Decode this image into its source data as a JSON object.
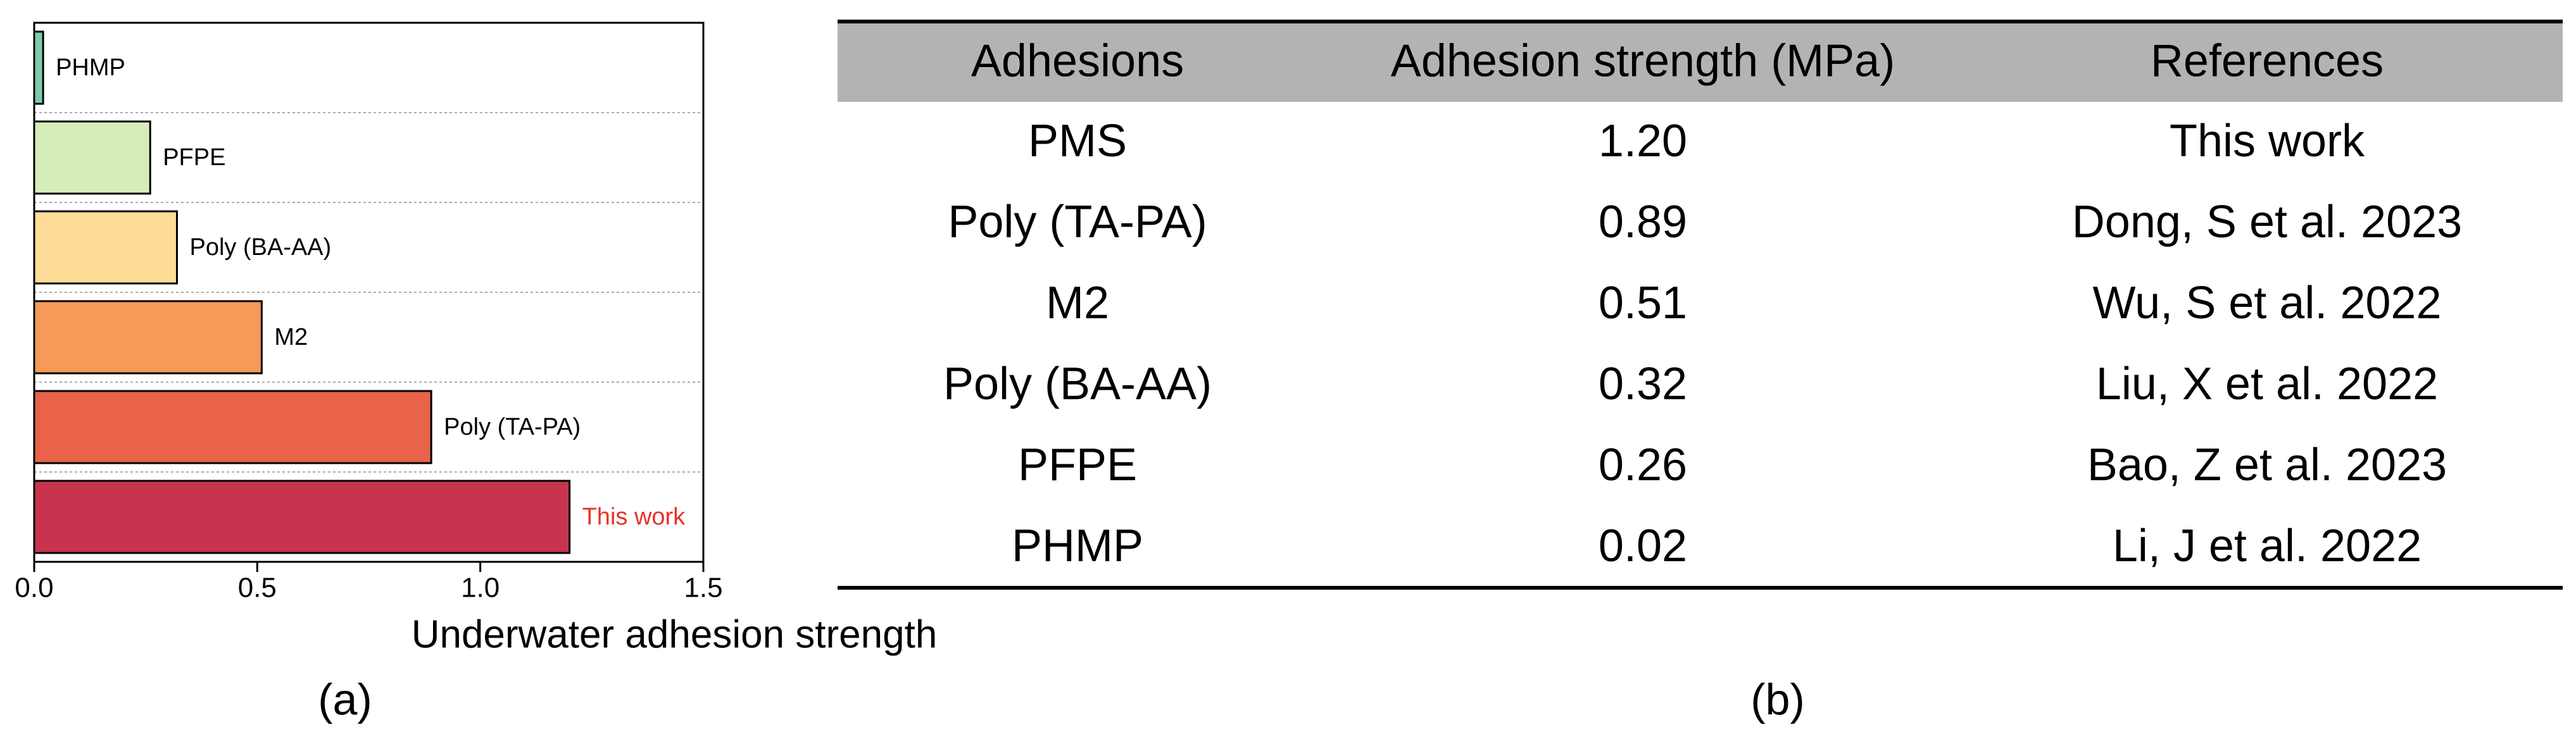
{
  "chart_data": {
    "type": "hbar",
    "categories": [
      "PHMP",
      "PFPE",
      "Poly (BA-AA)",
      "M2",
      "Poly (TA-PA)",
      "This work"
    ],
    "values": [
      0.02,
      0.26,
      0.32,
      0.51,
      0.89,
      1.2
    ],
    "colors": [
      "#7ecbab",
      "#d6edb9",
      "#fddc98",
      "#f69a58",
      "#e9624a",
      "#c8334e"
    ],
    "label_colors": [
      "#000000",
      "#000000",
      "#000000",
      "#000000",
      "#000000",
      "#e8322a"
    ],
    "x_label": "Underwater adhesion strength",
    "xlim": [
      0,
      1.5
    ],
    "xticks": [
      {
        "value": 0,
        "label": "0.0"
      },
      0.5,
      {
        "value": 1,
        "label": "1.0"
      },
      1.5
    ],
    "caption": "(a)"
  },
  "table": {
    "header": [
      "Adhesions",
      "Adhesion strength (MPa)",
      "References"
    ],
    "rows": [
      [
        "PMS",
        "1.20",
        "This work"
      ],
      [
        "Poly (TA-PA)",
        "0.89",
        "Dong, S et al. 2023"
      ],
      [
        "M2",
        "0.51",
        "Wu, S et al. 2022"
      ],
      [
        "Poly (BA-AA)",
        "0.32",
        "Liu, X et al. 2022"
      ],
      [
        "PFPE",
        "0.26",
        "Bao, Z et al. 2023"
      ],
      [
        "PHMP",
        "0.02",
        "Li, J et al. 2022"
      ]
    ],
    "caption": "(b)"
  }
}
